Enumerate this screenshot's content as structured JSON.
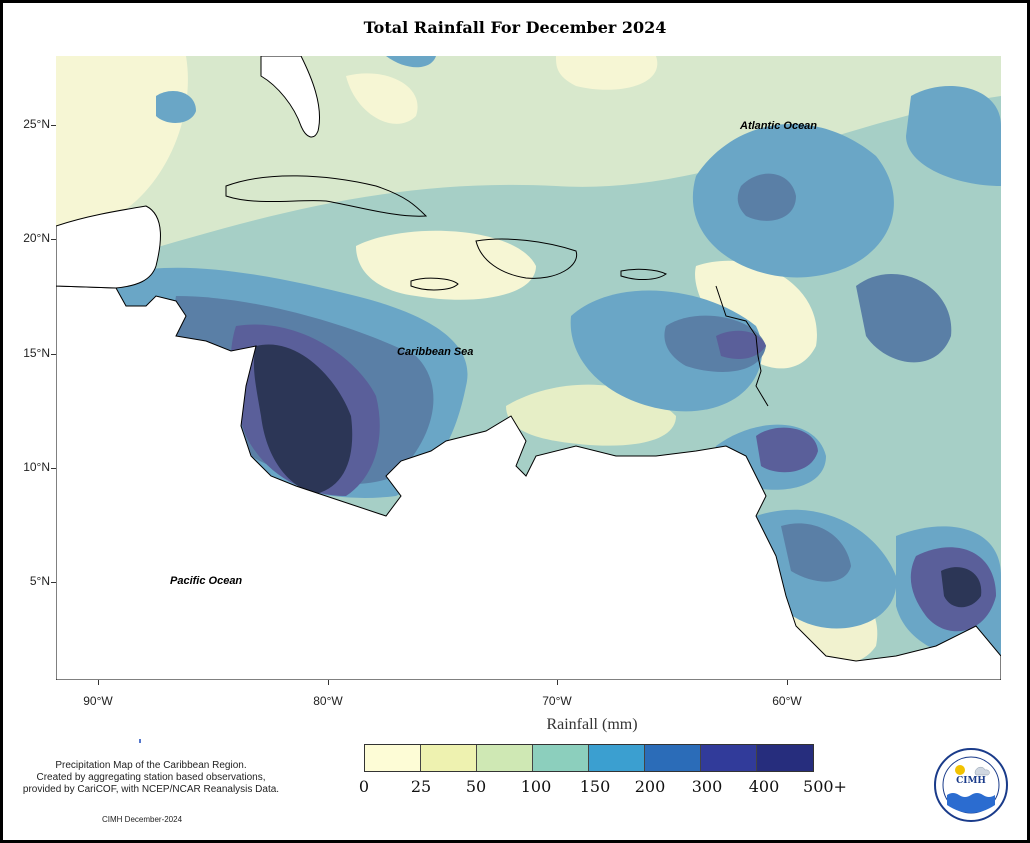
{
  "title": "Total Rainfall For December 2024",
  "map": {
    "y_ticks": [
      "25°N",
      "20°N",
      "15°N",
      "10°N",
      "5°N"
    ],
    "x_ticks": [
      "90°W",
      "80°W",
      "70°W",
      "60°W"
    ],
    "labels": {
      "atlantic": "Atlantic Ocean",
      "caribbean": "Caribbean Sea",
      "pacific": "Pacific Ocean"
    }
  },
  "legend": {
    "title": "Rainfall (mm)",
    "breaks": [
      "0",
      "25",
      "50",
      "100",
      "150",
      "200",
      "300",
      "400",
      "500+"
    ],
    "colors": [
      "#fdfcd6",
      "#eef2b0",
      "#cfe8b4",
      "#8ccfbd",
      "#3b9fd0",
      "#2b6cb8",
      "#313b9a",
      "#262d7d",
      "#0f1d4a"
    ]
  },
  "credit": {
    "line1": "Precipitation Map of the Caribbean Region.",
    "line2": "Created by aggregating station based observations,",
    "line3": "provided by CariCOF, with NCEP/NCAR Reanalysis Data.",
    "date": "CIMH December-2024"
  },
  "logo": {
    "text": "CIMH"
  },
  "fill_colors": {
    "pale": "#f6f6d4",
    "light_green": "#d8e8cc",
    "teal": "#a6cfc6",
    "blue": "#6aa6c6",
    "mid_blue": "#5a8cb4",
    "indigo": "#5a5f9a",
    "dark": "#2c3656"
  }
}
